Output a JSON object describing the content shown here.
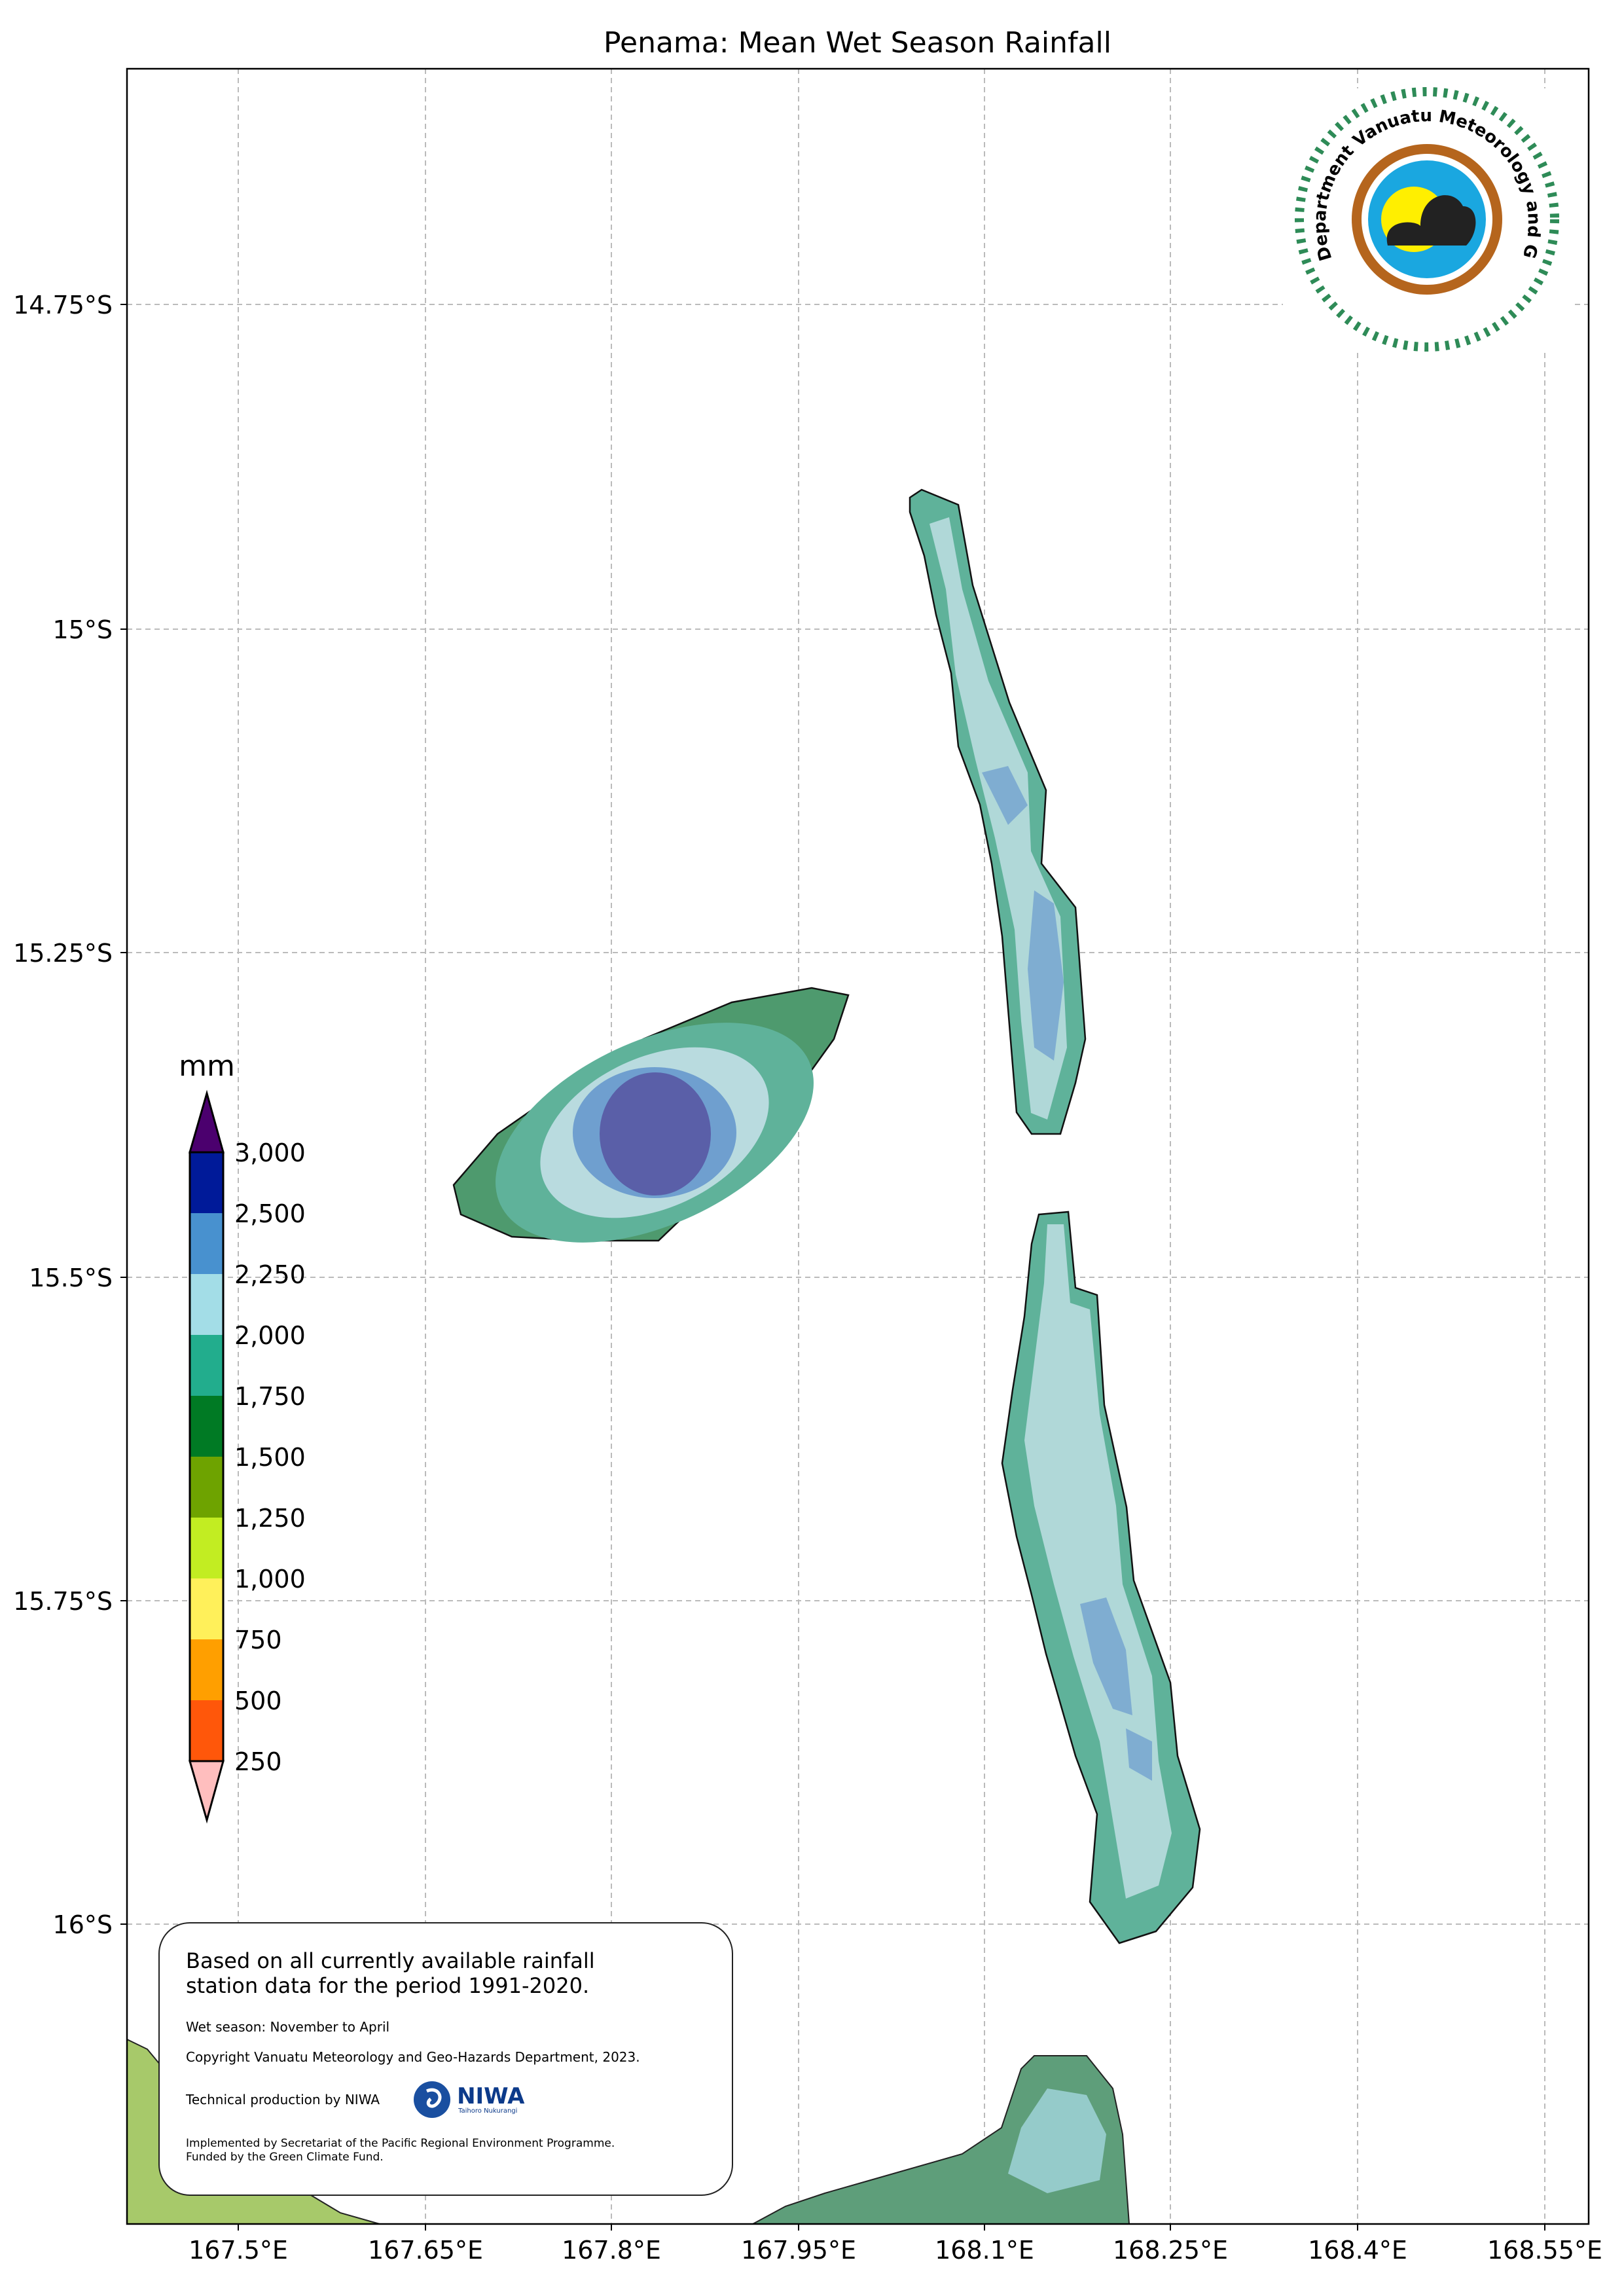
{
  "title": "Penama: Mean Wet Season Rainfall",
  "axes": {
    "y_ticks": [
      "14.75°S",
      "15°S",
      "15.25°S",
      "15.5°S",
      "15.75°S",
      "16°S"
    ],
    "x_ticks": [
      "167.5°E",
      "167.65°E",
      "167.8°E",
      "167.95°E",
      "168.1°E",
      "168.25°E",
      "168.4°E",
      "168.55°E"
    ]
  },
  "colorbar": {
    "unit": "mm",
    "labels": [
      "3,000",
      "2,500",
      "2,250",
      "2,000",
      "1,750",
      "1,500",
      "1,250",
      "1,000",
      "750",
      "500",
      "250"
    ],
    "colors": [
      "#4b006e",
      "#001a99",
      "#4891cf",
      "#a3dde7",
      "#22ad8d",
      "#007a24",
      "#6ea300",
      "#c2ed22",
      "#fff05a",
      "#ff9f00",
      "#ff570a",
      "#ffbebe"
    ]
  },
  "note": {
    "main": "Based on all currently available rainfall station data for the period 1991-2020.",
    "season": "Wet season: November to April",
    "copyright": "Copyright Vanuatu Meteorology and Geo-Hazards Department, 2023.",
    "technical": "Technical production by NIWA",
    "niwa_logo": "NIWA",
    "niwa_sub": "Taihoro Nukurangi",
    "implemented": "Implemented by Secretariat of the Pacific Regional Environment Programme.",
    "funded": "Funded by the Green Climate Fund."
  },
  "logo": {
    "text": "Department Vanuatu Meteorology and Geo-Hazards"
  }
}
